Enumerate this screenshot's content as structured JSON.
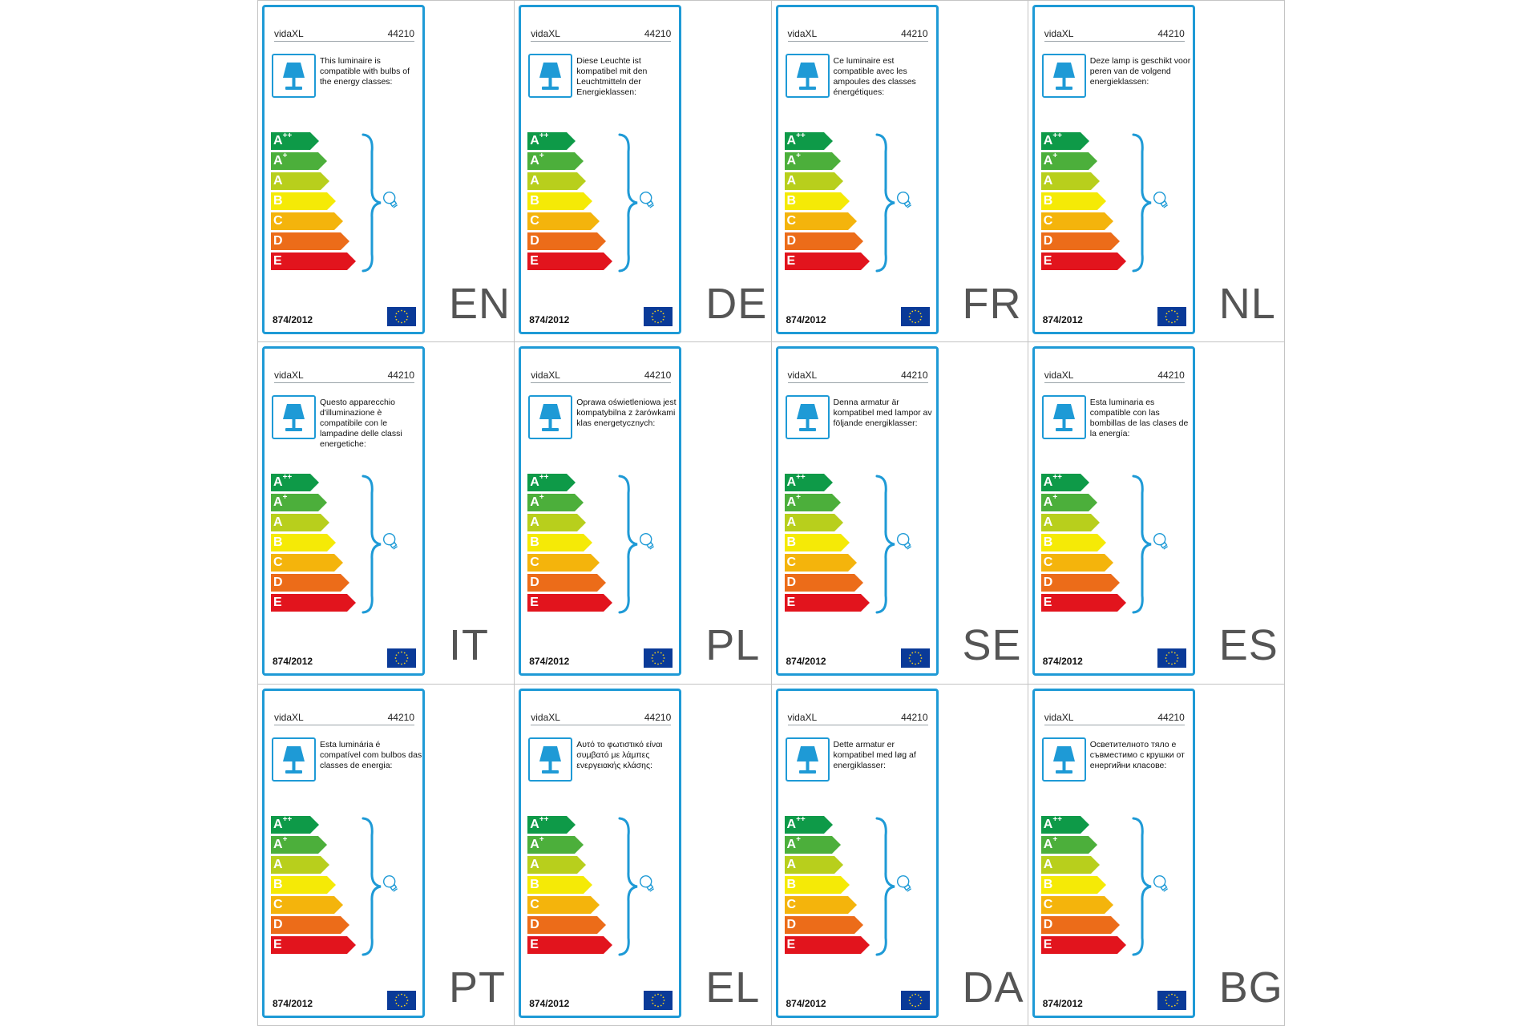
{
  "label_common": {
    "brand": "vidaXL",
    "product_code": "44210",
    "regulation": "874/2012",
    "icons": [
      "lamp-icon",
      "light-bulb-icon",
      "eu-flag-icon"
    ]
  },
  "energy_classes": [
    {
      "letter": "A",
      "sup": "++",
      "color": "#0e9a48"
    },
    {
      "letter": "A",
      "sup": "+",
      "color": "#4caf3b"
    },
    {
      "letter": "A",
      "sup": "",
      "color": "#b8cf1c"
    },
    {
      "letter": "B",
      "sup": "",
      "color": "#f5ea06"
    },
    {
      "letter": "C",
      "sup": "",
      "color": "#f4b40c"
    },
    {
      "letter": "D",
      "sup": "",
      "color": "#ec6c19"
    },
    {
      "letter": "E",
      "sup": "",
      "color": "#e2141d"
    }
  ],
  "colors": {
    "label_border": "#1e9ad6",
    "brace": "#1e9ad6",
    "eu_flag": "#0a3a98",
    "eu_stars": "#f6d21a",
    "grid_lines": "#c4c4c4",
    "lang_code": "#555555"
  },
  "labels": [
    {
      "lang": "EN",
      "text": "This luminaire is compatible with bulbs of the energy classes:"
    },
    {
      "lang": "DE",
      "text": "Diese Leuchte ist kompatibel mit den Leuchtmitteln der Energieklassen:"
    },
    {
      "lang": "FR",
      "text": "Ce luminaire est compatible avec les ampoules des classes énergétiques:"
    },
    {
      "lang": "NL",
      "text": "Deze lamp is geschikt voor peren van de volgend energieklassen:"
    },
    {
      "lang": "IT",
      "text": "Questo apparecchio d'illuminazione è compatibile con le lampadine delle classi energetiche:"
    },
    {
      "lang": "PL",
      "text": "Oprawa oświetleniowa jest kompatybilna z żarówkami klas energetycznych:"
    },
    {
      "lang": "SE",
      "text": "Denna armatur är kompatibel med lampor av följande energiklasser:"
    },
    {
      "lang": "ES",
      "text": "Esta luminaria es compatible con las bombillas de las clases de la energía:"
    },
    {
      "lang": "PT",
      "text": "Esta luminária é compatível com bulbos das classes de energia:"
    },
    {
      "lang": "EL",
      "text": "Αυτό το φωτιστικό είναι συμβατό με λάμπες ενεργειακής κλάσης:"
    },
    {
      "lang": "DA",
      "text": "Dette armatur er kompatibel med løg af energiklasser:"
    },
    {
      "lang": "BG",
      "text": "Осветителното тяло е съвместимо с крушки от енергийни класове:"
    }
  ]
}
